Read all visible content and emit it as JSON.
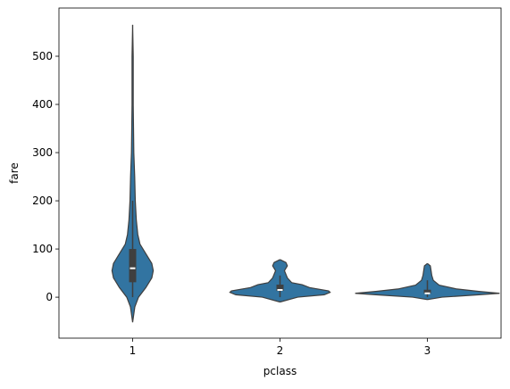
{
  "chart_data": {
    "type": "violin",
    "x_label": "pclass",
    "y_label": "fare",
    "categories": [
      "1",
      "2",
      "3"
    ],
    "color": "#3274a1",
    "edge_color": "#3f3f3f",
    "ylim": [
      -85,
      600
    ],
    "yticks": [
      0,
      100,
      200,
      300,
      400,
      500
    ],
    "violins": [
      {
        "y": [
          -52,
          -20,
          0,
          20,
          40,
          55,
          70,
          90,
          110,
          130,
          160,
          200,
          250,
          300,
          400,
          500,
          565
        ],
        "density": [
          0,
          0.015,
          0.04,
          0.09,
          0.13,
          0.14,
          0.13,
          0.09,
          0.05,
          0.035,
          0.025,
          0.018,
          0.014,
          0.008,
          0.004,
          0.004,
          0
        ],
        "box": {
          "whisker_low": 0,
          "q1": 31,
          "median": 60,
          "q3": 100,
          "whisker_high": 200
        }
      },
      {
        "y": [
          -10,
          0,
          5,
          10,
          13,
          20,
          26,
          30,
          40,
          55,
          65,
          72,
          78
        ],
        "density": [
          0,
          0.12,
          0.3,
          0.34,
          0.33,
          0.2,
          0.15,
          0.08,
          0.05,
          0.03,
          0.05,
          0.04,
          0
        ],
        "box": {
          "whisker_low": 0,
          "q1": 13,
          "median": 15,
          "q3": 26,
          "whisker_high": 45
        }
      },
      {
        "y": [
          -5,
          0,
          5,
          8,
          12,
          17,
          25,
          35,
          45,
          55,
          65,
          70
        ],
        "density": [
          0,
          0.1,
          0.35,
          0.49,
          0.35,
          0.2,
          0.08,
          0.04,
          0.03,
          0.025,
          0.02,
          0
        ],
        "box": {
          "whisker_low": 0,
          "q1": 8,
          "median": 8,
          "q3": 15.5,
          "whisker_high": 35
        }
      }
    ]
  }
}
